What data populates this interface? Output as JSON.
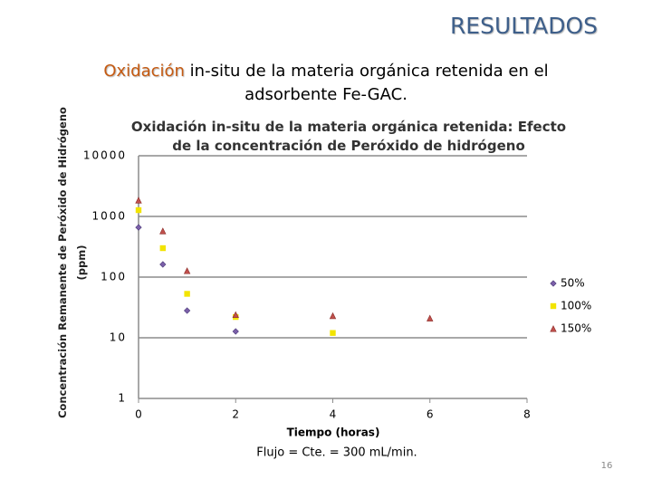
{
  "header": {
    "title": "RESULTADOS",
    "subtitle_highlight": "Oxidación",
    "subtitle_line1": "in-situ de la materia orgánica retenida en el",
    "subtitle_line2": "adsorbente Fe-GAC."
  },
  "chart_data": {
    "type": "scatter",
    "title": "Oxidación in-situ  de la materia orgánica retenida: Efecto de la concentración de Peróxido de hidrógeno",
    "x_label": "Tiempo (horas)",
    "y_label": "Concentración Remanente de Peróxido de Hidrógeno (ppm)",
    "xlim": [
      0,
      8
    ],
    "xticks": [
      0,
      2,
      4,
      6,
      8
    ],
    "ylim": [
      1,
      10000
    ],
    "yticks": [
      1,
      10,
      100,
      1000,
      10000
    ],
    "log_y": true,
    "grid": true,
    "legend": "right",
    "series": [
      {
        "name": "50%",
        "color": "#7b5fa8",
        "marker": "diamond",
        "x": [
          0,
          0.5,
          1,
          2
        ],
        "values": [
          660,
          162,
          28,
          12.7
        ]
      },
      {
        "name": "100%",
        "color": "#f2e400",
        "marker": "square",
        "x": [
          0,
          0.5,
          1,
          2,
          4
        ],
        "values": [
          1270,
          300,
          53,
          22,
          12
        ]
      },
      {
        "name": "150%",
        "color": "#c0504d",
        "marker": "triangle",
        "x": [
          0,
          0.5,
          1,
          2,
          4,
          6
        ],
        "values": [
          1850,
          575,
          127,
          24,
          23,
          21
        ]
      }
    ]
  },
  "footer": {
    "note": "Flujo = Cte. = 300 mL/min.",
    "page_number": "16"
  }
}
